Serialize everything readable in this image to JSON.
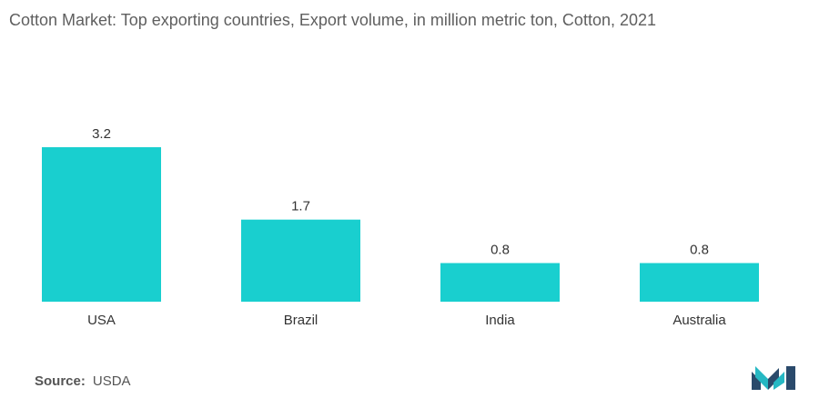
{
  "title": "Cotton Market: Top exporting countries, Export volume, in million metric ton, Cotton, 2021",
  "source": {
    "label": "Source:",
    "value": "USDA"
  },
  "colors": {
    "bar": "#19cfcf",
    "logo_dark": "#2a4a6b",
    "logo_teal": "#26b8c3"
  },
  "logo_icon": "mordor-intelligence-logo-icon",
  "chart_data": {
    "type": "bar",
    "title": "Cotton Market: Top exporting countries, Export volume, in million metric ton, Cotton, 2021",
    "categories": [
      "USA",
      "Brazil",
      "India",
      "Australia"
    ],
    "values": [
      3.2,
      1.7,
      0.8,
      0.8
    ],
    "value_labels": [
      "3.2",
      "1.7",
      "0.8",
      "0.8"
    ],
    "xlabel": "",
    "ylabel": "",
    "ylim": [
      0,
      3.2
    ],
    "grid": false,
    "legend": "none"
  }
}
